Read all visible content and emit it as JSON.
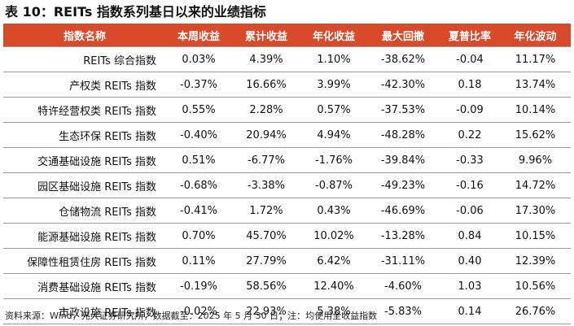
{
  "title": "表 10：REITs 指数系列基日以来的业绩指标",
  "table": {
    "headers": [
      "指数名称",
      "本周收益",
      "累计收益",
      "年化收益",
      "最大回撤",
      "夏普比率",
      "年化波动"
    ],
    "rows": [
      [
        "REITs 综合指数",
        "0.03%",
        "4.39%",
        "1.10%",
        "-38.62%",
        "-0.04",
        "11.17%"
      ],
      [
        "产权类 REITs 指数",
        "-0.37%",
        "16.66%",
        "3.99%",
        "-42.30%",
        "0.18",
        "13.74%"
      ],
      [
        "特许经营权类 REITs 指数",
        "0.55%",
        "2.28%",
        "0.57%",
        "-37.53%",
        "-0.09",
        "10.14%"
      ],
      [
        "生态环保 REITs 指数",
        "-0.40%",
        "20.94%",
        "4.94%",
        "-48.28%",
        "0.22",
        "15.62%"
      ],
      [
        "交通基础设施 REITs 指数",
        "0.51%",
        "-6.77%",
        "-1.76%",
        "-39.84%",
        "-0.33",
        "9.96%"
      ],
      [
        "园区基础设施 REITs 指数",
        "-0.68%",
        "-3.38%",
        "-0.87%",
        "-49.23%",
        "-0.16",
        "14.72%"
      ],
      [
        "仓储物流 REITs 指数",
        "-0.41%",
        "1.72%",
        "0.43%",
        "-46.69%",
        "-0.06",
        "17.30%"
      ],
      [
        "能源基础设施 REITs 指数",
        "0.70%",
        "45.70%",
        "10.02%",
        "-13.28%",
        "0.84",
        "10.15%"
      ],
      [
        "保障性租赁住房 REITs 指数",
        "0.11%",
        "27.79%",
        "6.42%",
        "-31.11%",
        "0.40",
        "12.39%"
      ],
      [
        "消费基础设施 REITs 指数",
        "-0.19%",
        "58.56%",
        "12.40%",
        "-4.60%",
        "1.03",
        "10.56%"
      ],
      [
        "市政设施 REITs 指数",
        "-0.02%",
        "22.93%",
        "5.38%",
        "-5.83%",
        "0.14",
        "26.76%"
      ]
    ]
  },
  "source": "资料来源：Wind，光大证券研究所，数据截至：2025 年 5 月 30 日；注：均使用全收益指数",
  "colors": {
    "header_bg": "#d94a2b",
    "header_text": "#ffffff"
  }
}
